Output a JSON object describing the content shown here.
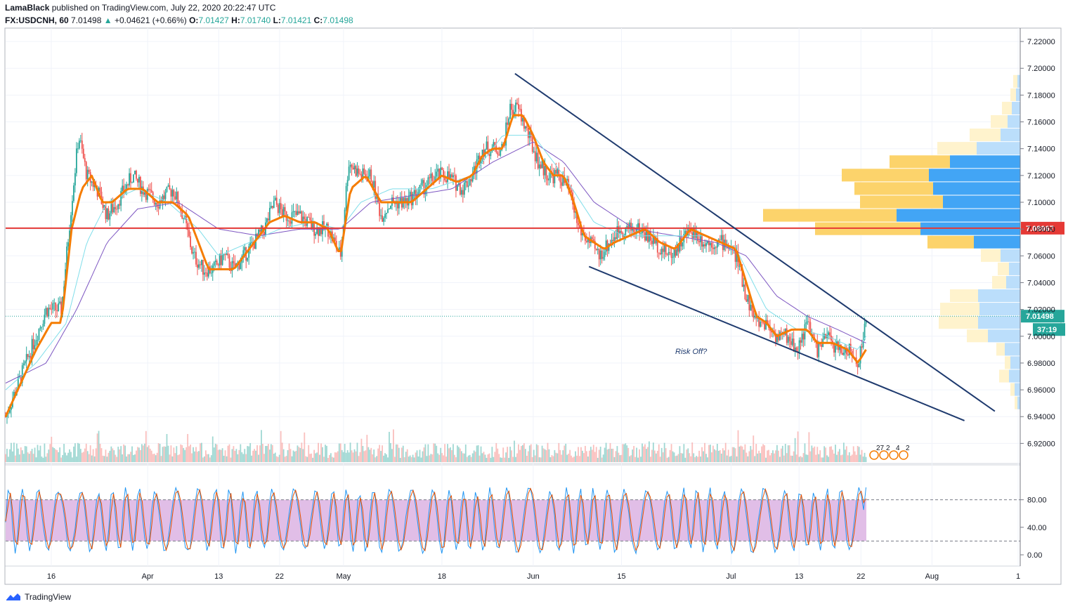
{
  "header": {
    "publisher": "LamaBlack",
    "published_text": "published on TradingView.com, July 22, 2020 20:22:47 UTC",
    "symbol": "FX:USDCNH, 60",
    "last_price": "7.01498",
    "change": "+0.04621 (+0.66%)",
    "o_label": "O:",
    "o_value": "7.01427",
    "h_label": "H:",
    "h_value": "7.01740",
    "l_label": "L:",
    "l_value": "7.01421",
    "c_label": "C:",
    "c_value": "7.01498"
  },
  "footer": {
    "brand": "TradingView"
  },
  "colors": {
    "price_up": "#26a69a",
    "price_down": "#ef5350",
    "ema_fast": "#f57c00",
    "ma_medium": "#80deea",
    "ma_slow": "#7e57c2",
    "resistance": "#e53935",
    "wedge": "#1e3a6e",
    "stoch_band": "#e1bee7",
    "vp_up": "#fbc02d",
    "vp_down": "#42a5f5"
  },
  "chart_data": {
    "type": "candlestick",
    "price_axis": {
      "min": 6.905,
      "max": 7.23,
      "ticks": [
        "7.22000",
        "7.20000",
        "7.18000",
        "7.16000",
        "7.14000",
        "7.12000",
        "7.10000",
        "7.08000",
        "7.06000",
        "7.04000",
        "7.02000",
        "7.00000",
        "6.98000",
        "6.96000",
        "6.94000",
        "6.92000"
      ]
    },
    "price_ticks_values": [
      7.22,
      7.2,
      7.18,
      7.16,
      7.14,
      7.12,
      7.1,
      7.08,
      7.06,
      7.04,
      7.02,
      7.0,
      6.98,
      6.96,
      6.94,
      6.92
    ],
    "time_axis_labels": [
      {
        "text": "16",
        "index": 0.045
      },
      {
        "text": "Apr",
        "index": 0.14
      },
      {
        "text": "13",
        "index": 0.21
      },
      {
        "text": "22",
        "index": 0.27
      },
      {
        "text": "May",
        "index": 0.333
      },
      {
        "text": "18",
        "index": 0.43
      },
      {
        "text": "Jun",
        "index": 0.52
      },
      {
        "text": "15",
        "index": 0.607
      },
      {
        "text": "Jul",
        "index": 0.715
      },
      {
        "text": "13",
        "index": 0.782
      },
      {
        "text": "22",
        "index": 0.843
      },
      {
        "text": "Aug",
        "index": 0.913
      },
      {
        "text": "1",
        "index": 0.998
      }
    ],
    "price_path": [
      [
        0.0,
        6.94
      ],
      [
        0.01,
        6.96
      ],
      [
        0.025,
        6.99
      ],
      [
        0.04,
        7.02
      ],
      [
        0.055,
        7.02
      ],
      [
        0.065,
        7.1
      ],
      [
        0.072,
        7.15
      ],
      [
        0.08,
        7.12
      ],
      [
        0.09,
        7.11
      ],
      [
        0.1,
        7.09
      ],
      [
        0.11,
        7.1
      ],
      [
        0.125,
        7.12
      ],
      [
        0.135,
        7.11
      ],
      [
        0.15,
        7.1
      ],
      [
        0.165,
        7.11
      ],
      [
        0.175,
        7.09
      ],
      [
        0.185,
        7.06
      ],
      [
        0.195,
        7.05
      ],
      [
        0.205,
        7.05
      ],
      [
        0.215,
        7.06
      ],
      [
        0.225,
        7.05
      ],
      [
        0.235,
        7.06
      ],
      [
        0.245,
        7.07
      ],
      [
        0.255,
        7.08
      ],
      [
        0.265,
        7.1
      ],
      [
        0.275,
        7.09
      ],
      [
        0.29,
        7.09
      ],
      [
        0.305,
        7.08
      ],
      [
        0.318,
        7.08
      ],
      [
        0.33,
        7.06
      ],
      [
        0.338,
        7.13
      ],
      [
        0.35,
        7.12
      ],
      [
        0.36,
        7.12
      ],
      [
        0.37,
        7.09
      ],
      [
        0.38,
        7.1
      ],
      [
        0.395,
        7.1
      ],
      [
        0.41,
        7.11
      ],
      [
        0.425,
        7.12
      ],
      [
        0.435,
        7.12
      ],
      [
        0.45,
        7.11
      ],
      [
        0.46,
        7.12
      ],
      [
        0.47,
        7.14
      ],
      [
        0.48,
        7.14
      ],
      [
        0.49,
        7.14
      ],
      [
        0.497,
        7.17
      ],
      [
        0.505,
        7.17
      ],
      [
        0.515,
        7.15
      ],
      [
        0.525,
        7.13
      ],
      [
        0.535,
        7.12
      ],
      [
        0.545,
        7.12
      ],
      [
        0.555,
        7.11
      ],
      [
        0.565,
        7.08
      ],
      [
        0.575,
        7.07
      ],
      [
        0.585,
        7.06
      ],
      [
        0.595,
        7.07
      ],
      [
        0.605,
        7.08
      ],
      [
        0.615,
        7.08
      ],
      [
        0.625,
        7.08
      ],
      [
        0.64,
        7.07
      ],
      [
        0.655,
        7.06
      ],
      [
        0.665,
        7.07
      ],
      [
        0.675,
        7.08
      ],
      [
        0.69,
        7.07
      ],
      [
        0.7,
        7.07
      ],
      [
        0.71,
        7.07
      ],
      [
        0.72,
        7.06
      ],
      [
        0.73,
        7.03
      ],
      [
        0.74,
        7.01
      ],
      [
        0.75,
        7.01
      ],
      [
        0.76,
        7.0
      ],
      [
        0.77,
        7.0
      ],
      [
        0.78,
        6.99
      ],
      [
        0.79,
        7.01
      ],
      [
        0.8,
        6.99
      ],
      [
        0.81,
        7.0
      ],
      [
        0.82,
        6.99
      ],
      [
        0.83,
        6.99
      ],
      [
        0.84,
        6.98
      ],
      [
        0.848,
        7.01
      ]
    ],
    "ema_fast_path": [
      [
        0.0,
        6.94
      ],
      [
        0.015,
        6.965
      ],
      [
        0.03,
        6.99
      ],
      [
        0.045,
        7.01
      ],
      [
        0.055,
        7.01
      ],
      [
        0.065,
        7.08
      ],
      [
        0.075,
        7.11
      ],
      [
        0.085,
        7.12
      ],
      [
        0.095,
        7.1
      ],
      [
        0.105,
        7.1
      ],
      [
        0.12,
        7.11
      ],
      [
        0.135,
        7.11
      ],
      [
        0.15,
        7.1
      ],
      [
        0.165,
        7.1
      ],
      [
        0.18,
        7.09
      ],
      [
        0.19,
        7.07
      ],
      [
        0.2,
        7.05
      ],
      [
        0.21,
        7.05
      ],
      [
        0.225,
        7.05
      ],
      [
        0.235,
        7.06
      ],
      [
        0.245,
        7.07
      ],
      [
        0.26,
        7.085
      ],
      [
        0.275,
        7.09
      ],
      [
        0.29,
        7.085
      ],
      [
        0.305,
        7.085
      ],
      [
        0.318,
        7.08
      ],
      [
        0.33,
        7.06
      ],
      [
        0.34,
        7.11
      ],
      [
        0.355,
        7.12
      ],
      [
        0.37,
        7.1
      ],
      [
        0.385,
        7.1
      ],
      [
        0.4,
        7.1
      ],
      [
        0.415,
        7.11
      ],
      [
        0.43,
        7.12
      ],
      [
        0.445,
        7.115
      ],
      [
        0.46,
        7.12
      ],
      [
        0.47,
        7.135
      ],
      [
        0.48,
        7.14
      ],
      [
        0.49,
        7.14
      ],
      [
        0.5,
        7.165
      ],
      [
        0.51,
        7.165
      ],
      [
        0.52,
        7.15
      ],
      [
        0.53,
        7.13
      ],
      [
        0.54,
        7.12
      ],
      [
        0.55,
        7.12
      ],
      [
        0.56,
        7.1
      ],
      [
        0.57,
        7.075
      ],
      [
        0.58,
        7.07
      ],
      [
        0.59,
        7.065
      ],
      [
        0.6,
        7.07
      ],
      [
        0.615,
        7.075
      ],
      [
        0.63,
        7.08
      ],
      [
        0.645,
        7.07
      ],
      [
        0.66,
        7.065
      ],
      [
        0.675,
        7.08
      ],
      [
        0.69,
        7.075
      ],
      [
        0.705,
        7.07
      ],
      [
        0.72,
        7.065
      ],
      [
        0.73,
        7.04
      ],
      [
        0.74,
        7.015
      ],
      [
        0.75,
        7.01
      ],
      [
        0.76,
        7.0
      ],
      [
        0.775,
        7.005
      ],
      [
        0.79,
        7.005
      ],
      [
        0.8,
        6.995
      ],
      [
        0.815,
        6.995
      ],
      [
        0.83,
        6.99
      ],
      [
        0.84,
        6.98
      ],
      [
        0.848,
        6.99
      ]
    ],
    "ma_medium_path": [
      [
        0.0,
        6.96
      ],
      [
        0.03,
        6.98
      ],
      [
        0.06,
        7.01
      ],
      [
        0.08,
        7.07
      ],
      [
        0.1,
        7.1
      ],
      [
        0.13,
        7.11
      ],
      [
        0.16,
        7.1
      ],
      [
        0.19,
        7.08
      ],
      [
        0.21,
        7.06
      ],
      [
        0.24,
        7.07
      ],
      [
        0.27,
        7.08
      ],
      [
        0.3,
        7.085
      ],
      [
        0.33,
        7.08
      ],
      [
        0.35,
        7.1
      ],
      [
        0.38,
        7.11
      ],
      [
        0.42,
        7.11
      ],
      [
        0.46,
        7.12
      ],
      [
        0.49,
        7.15
      ],
      [
        0.52,
        7.15
      ],
      [
        0.55,
        7.12
      ],
      [
        0.58,
        7.085
      ],
      [
        0.61,
        7.075
      ],
      [
        0.65,
        7.075
      ],
      [
        0.69,
        7.075
      ],
      [
        0.72,
        7.065
      ],
      [
        0.75,
        7.02
      ],
      [
        0.78,
        7.005
      ],
      [
        0.81,
        7.0
      ],
      [
        0.84,
        6.99
      ],
      [
        0.848,
        7.0
      ]
    ],
    "ma_slow_path": [
      [
        0.0,
        6.965
      ],
      [
        0.04,
        6.98
      ],
      [
        0.07,
        7.02
      ],
      [
        0.1,
        7.07
      ],
      [
        0.13,
        7.095
      ],
      [
        0.17,
        7.1
      ],
      [
        0.21,
        7.08
      ],
      [
        0.25,
        7.075
      ],
      [
        0.29,
        7.08
      ],
      [
        0.33,
        7.08
      ],
      [
        0.36,
        7.1
      ],
      [
        0.4,
        7.105
      ],
      [
        0.44,
        7.11
      ],
      [
        0.48,
        7.13
      ],
      [
        0.52,
        7.145
      ],
      [
        0.55,
        7.13
      ],
      [
        0.58,
        7.1
      ],
      [
        0.62,
        7.08
      ],
      [
        0.66,
        7.075
      ],
      [
        0.7,
        7.07
      ],
      [
        0.73,
        7.06
      ],
      [
        0.76,
        7.03
      ],
      [
        0.79,
        7.015
      ],
      [
        0.82,
        7.005
      ],
      [
        0.848,
        6.995
      ]
    ],
    "resistance_level": {
      "price": 7.08067,
      "label": "7.08067"
    },
    "current_price": {
      "price": 7.01498,
      "label": "7.01498",
      "countdown": "37:19"
    },
    "wedge_lines": [
      {
        "from": [
          0.502,
          7.196
        ],
        "to": [
          0.975,
          6.944
        ]
      },
      {
        "from": [
          0.575,
          7.052
        ],
        "to": [
          0.945,
          6.937
        ]
      }
    ],
    "annotation": {
      "text": "Risk Off?",
      "index": 0.66,
      "price": 6.989
    },
    "volume_profile": [
      {
        "price": 7.19,
        "up": 6,
        "down": 4
      },
      {
        "price": 7.18,
        "up": 8,
        "down": 6
      },
      {
        "price": 7.17,
        "up": 14,
        "down": 12
      },
      {
        "price": 7.16,
        "up": 24,
        "down": 18
      },
      {
        "price": 7.15,
        "up": 44,
        "down": 28
      },
      {
        "price": 7.14,
        "up": 56,
        "down": 62
      },
      {
        "price": 7.13,
        "up": 86,
        "down": 100
      },
      {
        "price": 7.12,
        "up": 124,
        "down": 130
      },
      {
        "price": 7.11,
        "up": 112,
        "down": 124
      },
      {
        "price": 7.1,
        "up": 118,
        "down": 110
      },
      {
        "price": 7.09,
        "up": 190,
        "down": 176
      },
      {
        "price": 7.08,
        "up": 150,
        "down": 142
      },
      {
        "price": 7.07,
        "up": 66,
        "down": 66
      },
      {
        "price": 7.06,
        "up": 28,
        "down": 28
      },
      {
        "price": 7.05,
        "up": 16,
        "down": 16
      },
      {
        "price": 7.04,
        "up": 20,
        "down": 20
      },
      {
        "price": 7.03,
        "up": 40,
        "down": 60
      },
      {
        "price": 7.02,
        "up": 56,
        "down": 58
      },
      {
        "price": 7.01,
        "up": 56,
        "down": 60
      },
      {
        "price": 7.0,
        "up": 30,
        "down": 46
      },
      {
        "price": 6.99,
        "up": 12,
        "down": 22
      },
      {
        "price": 6.98,
        "up": 8,
        "down": 14
      },
      {
        "price": 6.97,
        "up": 14,
        "down": 16
      },
      {
        "price": 6.96,
        "up": 6,
        "down": 8
      },
      {
        "price": 6.95,
        "up": 4,
        "down": 4
      }
    ],
    "event_markers": [
      "27",
      "2",
      "4",
      "2"
    ],
    "stochastic": {
      "axis_ticks": [
        "80.00",
        "40.00",
        "0.00"
      ],
      "axis_values": [
        80,
        40,
        0
      ],
      "upper_band": 80,
      "lower_band": 20,
      "last_value": 98
    }
  }
}
